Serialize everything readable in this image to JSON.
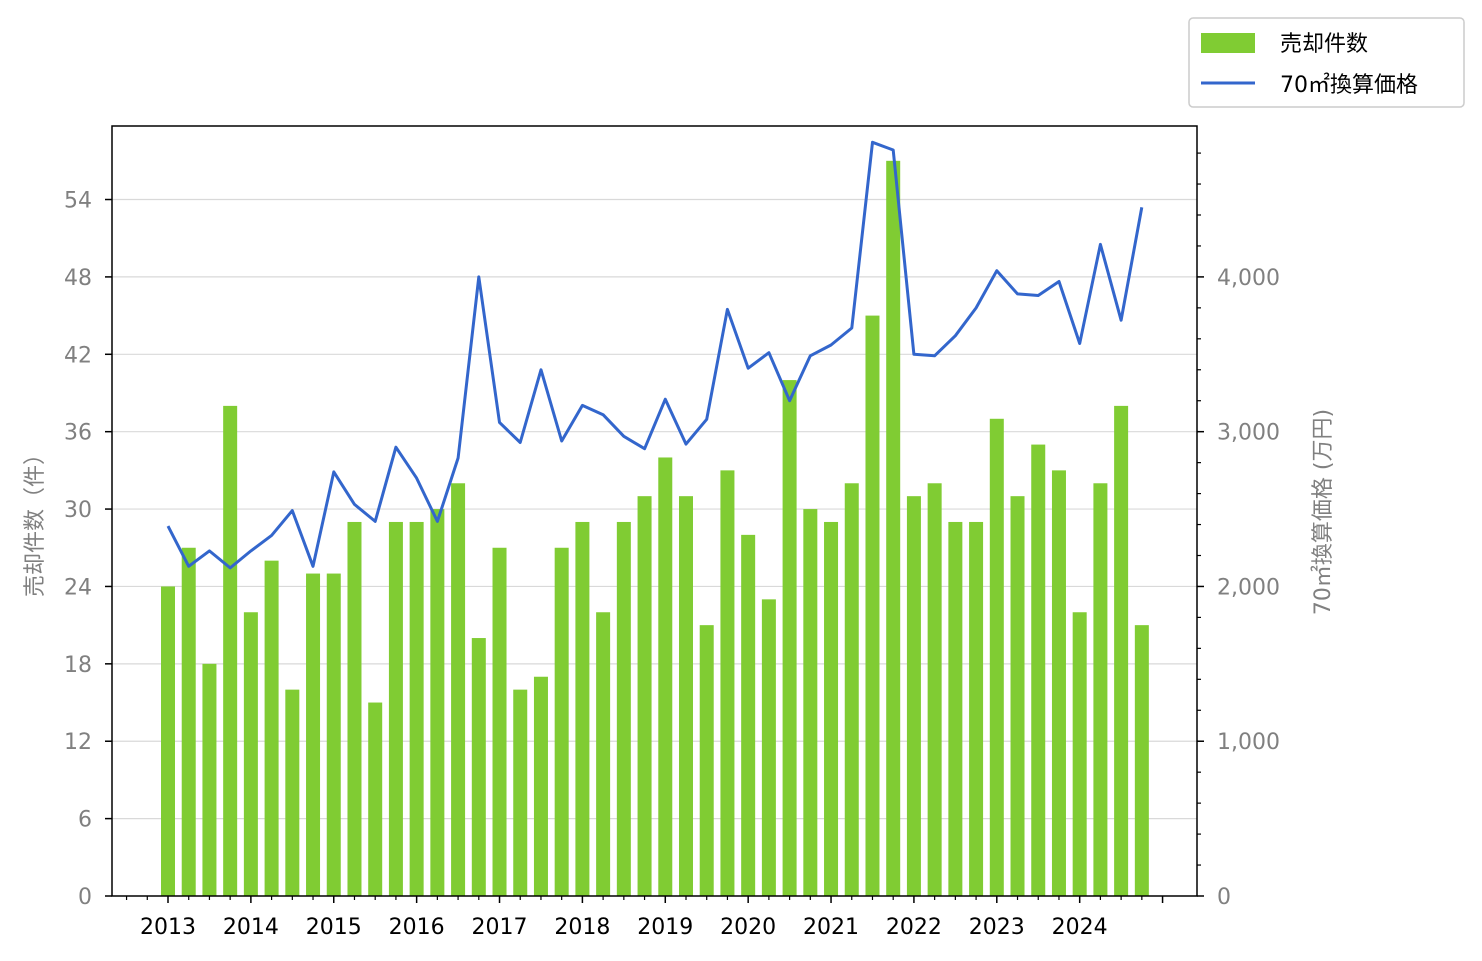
{
  "chart_data": {
    "type": "bar",
    "x_ticks": [
      "2013",
      "2014",
      "2015",
      "2016",
      "2017",
      "2018",
      "2019",
      "2020",
      "2021",
      "2022",
      "2023",
      "2024"
    ],
    "series": [
      {
        "name": "売却件数",
        "type": "bar",
        "axis": "left",
        "color": "#80cc33",
        "values": [
          24,
          27,
          18,
          38,
          22,
          26,
          16,
          25,
          25,
          29,
          15,
          29,
          29,
          30,
          32,
          20,
          27,
          16,
          17,
          27,
          29,
          22,
          29,
          31,
          34,
          31,
          21,
          33,
          28,
          23,
          40,
          30,
          29,
          32,
          45,
          57,
          31,
          32,
          29,
          29,
          37,
          31,
          35,
          33,
          22,
          32,
          38,
          21
        ]
      },
      {
        "name": "70㎡換算価格",
        "type": "line",
        "axis": "right",
        "color": "#3366cc",
        "values": [
          2390,
          2130,
          2230,
          2120,
          2230,
          2330,
          2490,
          2130,
          2740,
          2530,
          2420,
          2900,
          2700,
          2420,
          2830,
          4000,
          3060,
          2930,
          3400,
          2940,
          3170,
          3110,
          2970,
          2890,
          3210,
          2920,
          3080,
          3790,
          3410,
          3510,
          3200,
          3490,
          3560,
          3670,
          4870,
          4820,
          3500,
          3490,
          3620,
          3800,
          4040,
          3890,
          3880,
          3970,
          3570,
          4210,
          3720,
          4450
        ]
      }
    ],
    "left_axis": {
      "label": "売却件数（件）",
      "ticks": [
        "0",
        "6",
        "12",
        "18",
        "24",
        "30",
        "36",
        "42",
        "48",
        "54"
      ],
      "ylim": [
        0,
        59.7
      ]
    },
    "right_axis": {
      "label": "70㎡換算価格 (万円)",
      "ticks": [
        "0",
        "1,000",
        "2,000",
        "3,000",
        "4,000"
      ],
      "ylim": [
        0,
        4975
      ]
    },
    "grid": "horizontal",
    "legend_position": "top-right, outside plot"
  }
}
